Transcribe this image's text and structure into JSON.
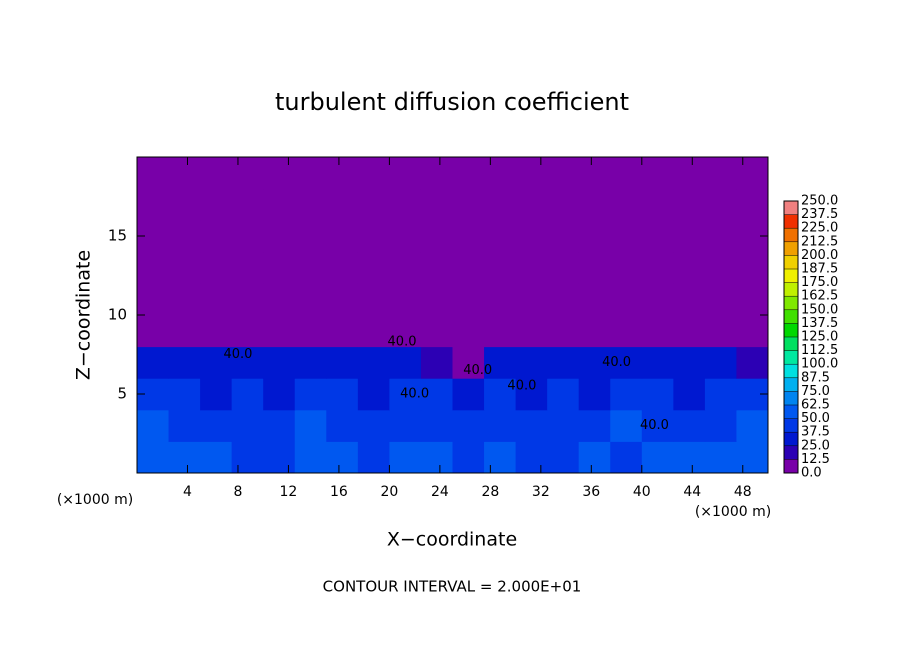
{
  "chart_data": {
    "type": "heatmap",
    "title": "turbulent diffusion coefficient",
    "xlabel": "X−coordinate",
    "ylabel": "Z−coordinate",
    "x_unit": "(×1000 m)",
    "x_unit_right": "(×1000 m)",
    "note": "CONTOUR INTERVAL = 2.000E+01",
    "xlim": [
      0,
      50
    ],
    "ylim": [
      0,
      20
    ],
    "xticks": [
      4,
      8,
      12,
      16,
      20,
      24,
      28,
      32,
      36,
      40,
      44,
      48
    ],
    "yticks": [
      5,
      10,
      15
    ],
    "z": [
      [
        60,
        55,
        50,
        45,
        40,
        55,
        50,
        45,
        55,
        50,
        45,
        50,
        40,
        45,
        50,
        45,
        55,
        50,
        60,
        55
      ],
      [
        50,
        45,
        40,
        45,
        40,
        50,
        45,
        40,
        45,
        40,
        40,
        45,
        40,
        45,
        40,
        50,
        45,
        40,
        45,
        50
      ],
      [
        40,
        40,
        35,
        45,
        35,
        40,
        45,
        35,
        40,
        40,
        35,
        45,
        35,
        40,
        35,
        45,
        40,
        35,
        40,
        45
      ],
      [
        35,
        30,
        30,
        35,
        30,
        25,
        30,
        35,
        30,
        20,
        10,
        30,
        30,
        35,
        35,
        30,
        35,
        30,
        25,
        15
      ],
      [
        0,
        0,
        0,
        10,
        0,
        0,
        0,
        10,
        5,
        0,
        0,
        0,
        0,
        0,
        10,
        10,
        5,
        0,
        0,
        0
      ],
      [
        0,
        0,
        0,
        0,
        0,
        0,
        0,
        0,
        0,
        0,
        0,
        0,
        0,
        0,
        0,
        0,
        0,
        0,
        0,
        0
      ],
      [
        0,
        0,
        0,
        0,
        0,
        0,
        0,
        0,
        0,
        0,
        0,
        0,
        0,
        0,
        0,
        0,
        0,
        0,
        0,
        0
      ],
      [
        0,
        0,
        0,
        0,
        0,
        0,
        0,
        0,
        0,
        0,
        0,
        0,
        0,
        0,
        0,
        0,
        0,
        0,
        0,
        0
      ],
      [
        0,
        0,
        0,
        0,
        0,
        0,
        0,
        0,
        0,
        0,
        0,
        0,
        0,
        0,
        0,
        0,
        0,
        0,
        0,
        0
      ],
      [
        0,
        0,
        0,
        0,
        0,
        0,
        0,
        0,
        0,
        0,
        0,
        0,
        0,
        0,
        0,
        0,
        0,
        0,
        0,
        0
      ]
    ],
    "levels": [
      {
        "value": 0,
        "label": "0.0"
      },
      {
        "value": 12.5,
        "label": "12.5"
      },
      {
        "value": 25,
        "label": "25.0"
      },
      {
        "value": 37.5,
        "label": "37.5"
      },
      {
        "value": 50,
        "label": "50.0"
      },
      {
        "value": 62.5,
        "label": "62.5"
      },
      {
        "value": 75,
        "label": "75.0"
      },
      {
        "value": 87.5,
        "label": "87.5"
      },
      {
        "value": 100,
        "label": "100.0"
      },
      {
        "value": 112.5,
        "label": "112.5"
      },
      {
        "value": 125,
        "label": "125.0"
      },
      {
        "value": 137.5,
        "label": "137.5"
      },
      {
        "value": 150,
        "label": "150.0"
      },
      {
        "value": 162.5,
        "label": "162.5"
      },
      {
        "value": 175,
        "label": "175.0"
      },
      {
        "value": 187.5,
        "label": "187.5"
      },
      {
        "value": 200,
        "label": "200.0"
      },
      {
        "value": 212.5,
        "label": "212.5"
      },
      {
        "value": 225,
        "label": "225.0"
      },
      {
        "value": 237.5,
        "label": "237.5"
      },
      {
        "value": 250,
        "label": "250.0"
      }
    ],
    "colors": [
      "#7800a8",
      "#2c00b4",
      "#0018d0",
      "#0038e6",
      "#0058f0",
      "#0084f0",
      "#00b0f0",
      "#00e0e0",
      "#00e8a0",
      "#00e060",
      "#00d800",
      "#40e000",
      "#80e800",
      "#c0f000",
      "#f0f000",
      "#f0d000",
      "#f0a000",
      "#f07000",
      "#f03000",
      "#f08080"
    ],
    "annotations": [
      {
        "text": "40.0",
        "x": 8,
        "y": 7.5
      },
      {
        "text": "40.0",
        "x": 21,
        "y": 8.3
      },
      {
        "text": "40.0",
        "x": 22,
        "y": 5
      },
      {
        "text": "40.0",
        "x": 27,
        "y": 6.5
      },
      {
        "text": "40.0",
        "x": 30.5,
        "y": 5.5
      },
      {
        "text": "40.0",
        "x": 38,
        "y": 7
      },
      {
        "text": "40.0",
        "x": 41,
        "y": 3
      }
    ]
  }
}
